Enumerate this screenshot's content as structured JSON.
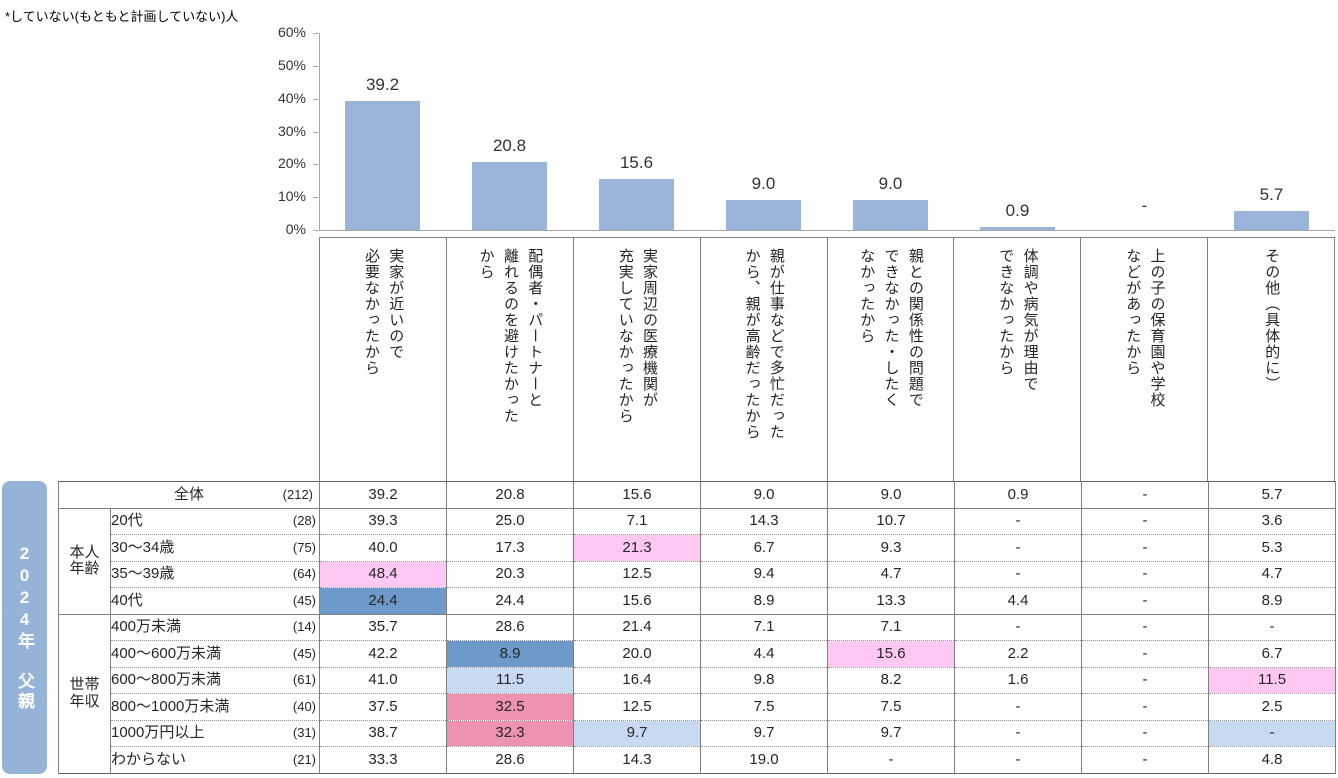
{
  "title": "*していない(もともと計画していない)人",
  "sidebar": {
    "label": "2024年　父親"
  },
  "colors": {
    "bar": "#9AB5D9",
    "sidebar_bg": "#95B3D7",
    "sidebar_text": "#FFFFFF",
    "highlight_pink": "#FFC8F2",
    "highlight_dark_pink": "#EE92B2",
    "highlight_dark_blue": "#6D9ACB",
    "highlight_light_blue": "#C7DAF2",
    "axis": "#A6A6A6",
    "grid_border": "#7F7F7F"
  },
  "chart_data": {
    "type": "bar",
    "title": "",
    "xlabel": "",
    "ylabel": "",
    "ylim": [
      0,
      60
    ],
    "yticks": [
      "60%",
      "50%",
      "40%",
      "30%",
      "20%",
      "10%",
      "0%"
    ],
    "grid": false,
    "legend": "none",
    "categories": [
      "実家が近いので必要なかったから",
      "配偶者・パートナーと離れるのを避けたかったから",
      "実家周辺の医療機関が充実していなかったから",
      "親が仕事などで多忙だったから、親が高齢だったから",
      "親との関係性の問題でできなかった・したくなかったから",
      "体調や病気が理由でできなかったから",
      "上の子の保育園や学校などがあったから",
      "その他（具体的に）"
    ],
    "category_lines": [
      [
        "実家が近いので",
        "必要なかったから"
      ],
      [
        "配偶者・パートナーと",
        "離れるのを避けたかった",
        "から"
      ],
      [
        "実家周辺の医療機関が",
        "充実していなかったから"
      ],
      [
        "親が仕事などで多忙だった",
        "から、親が高齢だったから"
      ],
      [
        "親との関係性の問題で",
        "できなかった・したく",
        "なかったから"
      ],
      [
        "体調や病気が理由で",
        "できなかったから"
      ],
      [
        "上の子の保育園や学校",
        "などがあったから"
      ],
      [
        "その他（具体的に）"
      ]
    ],
    "values": [
      39.2,
      20.8,
      15.6,
      9.0,
      9.0,
      0.9,
      null,
      5.7
    ],
    "value_labels": [
      "39.2",
      "20.8",
      "15.6",
      "9.0",
      "9.0",
      "0.9",
      "-",
      "5.7"
    ]
  },
  "table": {
    "rows": [
      {
        "label": "全体",
        "count": "(212)",
        "full_width": true,
        "section_start": false,
        "values": [
          "39.2",
          "20.8",
          "15.6",
          "9.0",
          "9.0",
          "0.9",
          "-",
          "5.7"
        ],
        "highlights": [
          null,
          null,
          null,
          null,
          null,
          null,
          null,
          null
        ]
      },
      {
        "group": {
          "lines": [
            "本人",
            "年齢"
          ],
          "span": 4
        },
        "label": "20代",
        "count": "(28)",
        "section_start": true,
        "values": [
          "39.3",
          "25.0",
          "7.1",
          "14.3",
          "10.7",
          "-",
          "-",
          "3.6"
        ],
        "highlights": [
          null,
          null,
          null,
          null,
          null,
          null,
          null,
          null
        ]
      },
      {
        "label": "30〜34歳",
        "count": "(75)",
        "section_start": false,
        "values": [
          "40.0",
          "17.3",
          "21.3",
          "6.7",
          "9.3",
          "-",
          "-",
          "5.3"
        ],
        "highlights": [
          null,
          null,
          "pink",
          null,
          null,
          null,
          null,
          null
        ]
      },
      {
        "label": "35〜39歳",
        "count": "(64)",
        "section_start": false,
        "values": [
          "48.4",
          "20.3",
          "12.5",
          "9.4",
          "4.7",
          "-",
          "-",
          "4.7"
        ],
        "highlights": [
          "pink",
          null,
          null,
          null,
          null,
          null,
          null,
          null
        ]
      },
      {
        "label": "40代",
        "count": "(45)",
        "section_start": false,
        "values": [
          "24.4",
          "24.4",
          "15.6",
          "8.9",
          "13.3",
          "4.4",
          "-",
          "8.9"
        ],
        "highlights": [
          "dblue",
          null,
          null,
          null,
          null,
          null,
          null,
          null
        ]
      },
      {
        "group": {
          "lines": [
            "世帯",
            "年収"
          ],
          "span": 6
        },
        "label": "400万未満",
        "count": "(14)",
        "section_start": true,
        "values": [
          "35.7",
          "28.6",
          "21.4",
          "7.1",
          "7.1",
          "-",
          "-",
          "-"
        ],
        "highlights": [
          null,
          null,
          null,
          null,
          null,
          null,
          null,
          null
        ]
      },
      {
        "label": "400〜600万未満",
        "count": "(45)",
        "section_start": false,
        "values": [
          "42.2",
          "8.9",
          "20.0",
          "4.4",
          "15.6",
          "2.2",
          "-",
          "6.7"
        ],
        "highlights": [
          null,
          "dblue",
          null,
          null,
          "pink",
          null,
          null,
          null
        ]
      },
      {
        "label": "600〜800万未満",
        "count": "(61)",
        "section_start": false,
        "values": [
          "41.0",
          "11.5",
          "16.4",
          "9.8",
          "8.2",
          "1.6",
          "-",
          "11.5"
        ],
        "highlights": [
          null,
          "lblue",
          null,
          null,
          null,
          null,
          null,
          "pink"
        ]
      },
      {
        "label": "800〜1000万未満",
        "count": "(40)",
        "section_start": false,
        "values": [
          "37.5",
          "32.5",
          "12.5",
          "7.5",
          "7.5",
          "-",
          "-",
          "2.5"
        ],
        "highlights": [
          null,
          "dpink",
          null,
          null,
          null,
          null,
          null,
          null
        ]
      },
      {
        "label": "1000万円以上",
        "count": "(31)",
        "section_start": false,
        "values": [
          "38.7",
          "32.3",
          "9.7",
          "9.7",
          "9.7",
          "-",
          "-",
          "-"
        ],
        "highlights": [
          null,
          "dpink",
          "lblue",
          null,
          null,
          null,
          null,
          "lblue"
        ]
      },
      {
        "label": "わからない",
        "count": "(21)",
        "section_start": false,
        "values": [
          "33.3",
          "28.6",
          "14.3",
          "19.0",
          "-",
          "-",
          "-",
          "4.8"
        ],
        "highlights": [
          null,
          null,
          null,
          null,
          null,
          null,
          null,
          null
        ]
      }
    ]
  }
}
